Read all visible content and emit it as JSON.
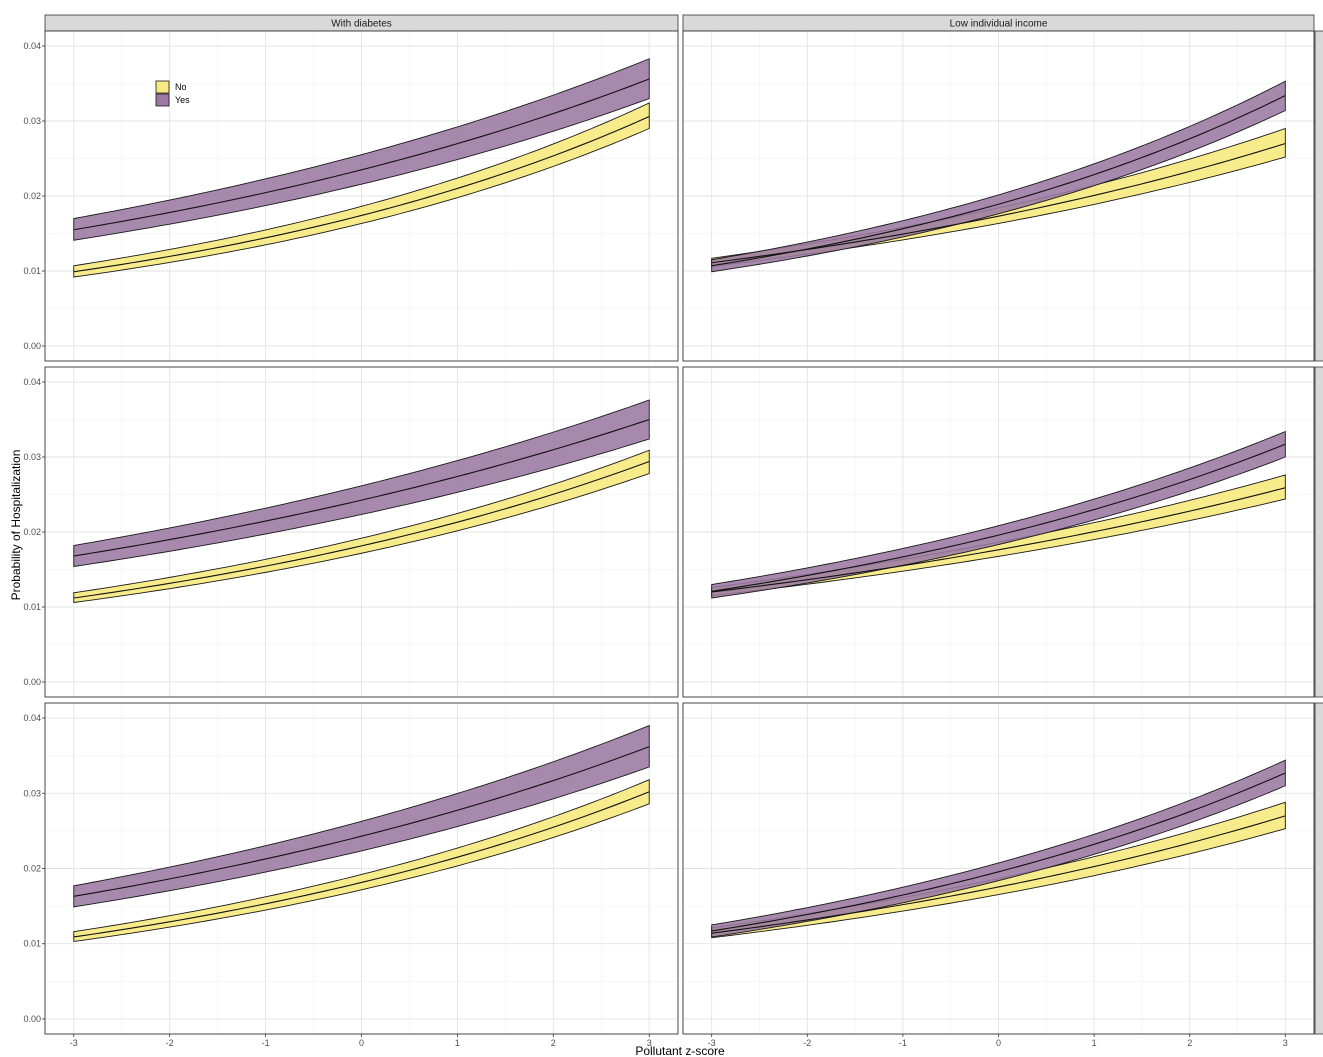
{
  "chart_data": {
    "type": "area",
    "title": "",
    "xlabel": "Pollutant z-score",
    "ylabel": "Probability of Hospitalization",
    "xlim": [
      -3,
      3
    ],
    "ylim": [
      0,
      0.04
    ],
    "x_ticks": [
      "-3",
      "-2",
      "-1",
      "0",
      "1",
      "2",
      "3"
    ],
    "y_ticks": [
      "0.00",
      "0.01",
      "0.02",
      "0.03",
      "0.04"
    ],
    "grid": true,
    "legend": {
      "placement": "top-left inside first panel",
      "entries": [
        {
          "label": "No",
          "color": "#f7ea85"
        },
        {
          "label": "Yes",
          "color": "#9b79a3"
        }
      ]
    },
    "columns": [
      "With diabetes",
      "Low individual income"
    ],
    "rows": [
      "",
      "",
      ""
    ],
    "overlap_color": "#a88478",
    "panels": [
      {
        "column": 0,
        "row": 0,
        "series": [
          {
            "group": "No",
            "x": [
              -3,
              3
            ],
            "fit": [
              0.0099,
              0.0306
            ],
            "lower": [
              0.0092,
              0.029
            ],
            "upper": [
              0.0107,
              0.0324
            ]
          },
          {
            "group": "Yes",
            "x": [
              -3,
              3
            ],
            "fit": [
              0.0155,
              0.0356
            ],
            "lower": [
              0.0141,
              0.033
            ],
            "upper": [
              0.017,
              0.0383
            ]
          }
        ]
      },
      {
        "column": 1,
        "row": 0,
        "series": [
          {
            "group": "No",
            "x": [
              -3,
              3
            ],
            "fit": [
              0.0111,
              0.027
            ],
            "lower": [
              0.0106,
              0.0252
            ],
            "upper": [
              0.0117,
              0.029
            ]
          },
          {
            "group": "Yes",
            "x": [
              -3,
              3
            ],
            "fit": [
              0.0107,
              0.0334
            ],
            "lower": [
              0.0099,
              0.0314
            ],
            "upper": [
              0.0115,
              0.0353
            ]
          }
        ]
      },
      {
        "column": 0,
        "row": 1,
        "series": [
          {
            "group": "No",
            "x": [
              -3,
              3
            ],
            "fit": [
              0.0112,
              0.0294
            ],
            "lower": [
              0.0106,
              0.0278
            ],
            "upper": [
              0.0119,
              0.0309
            ]
          },
          {
            "group": "Yes",
            "x": [
              -3,
              3
            ],
            "fit": [
              0.0168,
              0.035
            ],
            "lower": [
              0.0154,
              0.0324
            ],
            "upper": [
              0.0182,
              0.0376
            ]
          }
        ]
      },
      {
        "column": 1,
        "row": 1,
        "series": [
          {
            "group": "No",
            "x": [
              -3,
              3
            ],
            "fit": [
              0.012,
              0.0259
            ],
            "lower": [
              0.0115,
              0.0244
            ],
            "upper": [
              0.0126,
              0.0276
            ]
          },
          {
            "group": "Yes",
            "x": [
              -3,
              3
            ],
            "fit": [
              0.0121,
              0.0317
            ],
            "lower": [
              0.0112,
              0.03
            ],
            "upper": [
              0.013,
              0.0334
            ]
          }
        ]
      },
      {
        "column": 0,
        "row": 2,
        "series": [
          {
            "group": "No",
            "x": [
              -3,
              3
            ],
            "fit": [
              0.0109,
              0.0302
            ],
            "lower": [
              0.0103,
              0.0286
            ],
            "upper": [
              0.0116,
              0.0318
            ]
          },
          {
            "group": "Yes",
            "x": [
              -3,
              3
            ],
            "fit": [
              0.0163,
              0.0362
            ],
            "lower": [
              0.0149,
              0.0335
            ],
            "upper": [
              0.0177,
              0.039
            ]
          }
        ]
      },
      {
        "column": 1,
        "row": 2,
        "series": [
          {
            "group": "No",
            "x": [
              -3,
              3
            ],
            "fit": [
              0.0114,
              0.027
            ],
            "lower": [
              0.0108,
              0.0253
            ],
            "upper": [
              0.0121,
              0.0288
            ]
          },
          {
            "group": "Yes",
            "x": [
              -3,
              3
            ],
            "fit": [
              0.0117,
              0.0327
            ],
            "lower": [
              0.0109,
              0.031
            ],
            "upper": [
              0.0125,
              0.0344
            ]
          }
        ]
      }
    ]
  }
}
